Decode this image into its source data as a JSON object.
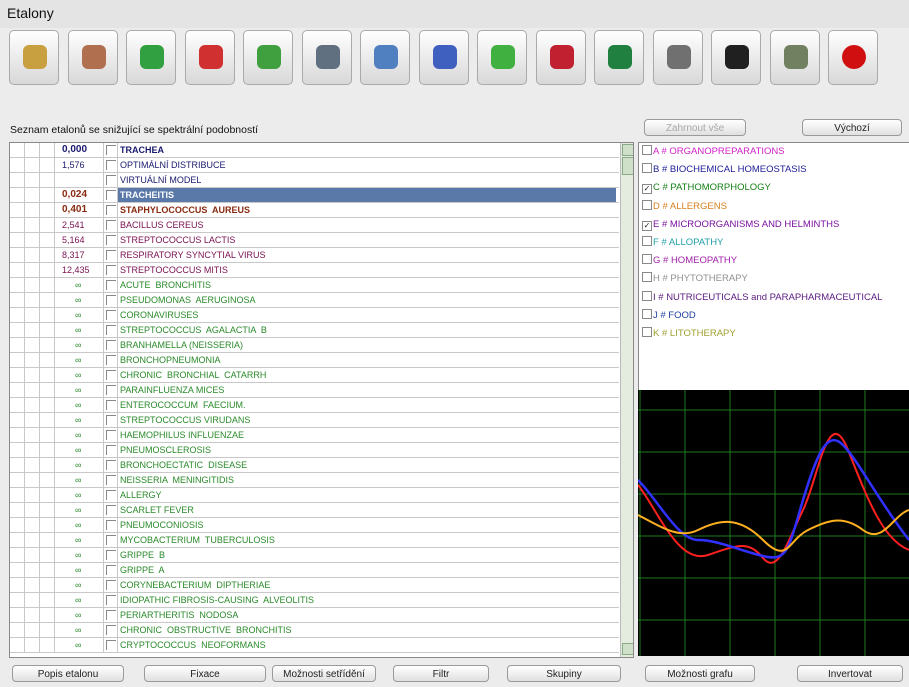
{
  "window": {
    "title": "Etalony"
  },
  "list_caption": "Seznam etalonů se snižující se spektrální podobností",
  "table": {
    "rows": [
      {
        "value": "0,000",
        "name": "TRACHEA",
        "color": "#1a1a6e",
        "bold": true
      },
      {
        "value": "1,576",
        "name": "OPTIMÁLNÍ DISTRIBUCE",
        "color": "#1a1a6e"
      },
      {
        "name": "VIRTUÁLNÍ MODEL",
        "color": "#1a1a6e"
      },
      {
        "value": "0,024",
        "name": "TRACHEITIS",
        "color": "#8a2a10",
        "bold": true,
        "selected": true
      },
      {
        "value": "0,401",
        "name": "STAPHYLOCOCCUS  AUREUS",
        "color": "#8a2a10",
        "bold": true
      },
      {
        "value": "2,541",
        "name": "BACILLUS CEREUS",
        "color": "#7a1050"
      },
      {
        "value": "5,164",
        "name": "STREPTOCOCCUS LACTIS",
        "color": "#7a1050"
      },
      {
        "value": "8,317",
        "name": "RESPIRATORY SYNCYTIAL VIRUS",
        "color": "#7a1050"
      },
      {
        "value": "12,435",
        "name": "STREPTOCOCCUS MITIS",
        "color": "#7a1050"
      },
      {
        "value": "∞",
        "name": "ACUTE  BRONCHITIS",
        "color": "#2a8a2a"
      },
      {
        "value": "∞",
        "name": "PSEUDOMONAS  AERUGINOSA",
        "color": "#2a8a2a"
      },
      {
        "value": "∞",
        "name": "CORONAVIRUSES",
        "color": "#2a8a2a"
      },
      {
        "value": "∞",
        "name": "STREPTOCOCCUS  AGALACTIA  B",
        "color": "#2a8a2a"
      },
      {
        "value": "∞",
        "name": "BRANHAMELLA (NEISSERIA)",
        "color": "#2a8a2a"
      },
      {
        "value": "∞",
        "name": "BRONCHOPNEUMONIA",
        "color": "#2a8a2a"
      },
      {
        "value": "∞",
        "name": "CHRONIC  BRONCHIAL  CATARRH",
        "color": "#2a8a2a"
      },
      {
        "value": "∞",
        "name": "PARAINFLUENZA MICES",
        "color": "#2a8a2a"
      },
      {
        "value": "∞",
        "name": "ENTEROCOCCUM  FAECIUM.",
        "color": "#2a8a2a"
      },
      {
        "value": "∞",
        "name": "STREPTOCOCCUS VIRUDANS",
        "color": "#2a8a2a"
      },
      {
        "value": "∞",
        "name": "HAEMOPHILUS INFLUENZAE",
        "color": "#2a8a2a"
      },
      {
        "value": "∞",
        "name": "PNEUMOSCLEROSIS",
        "color": "#2a8a2a"
      },
      {
        "value": "∞",
        "name": "BRONCHOECTATIC  DISEASE",
        "color": "#2a8a2a"
      },
      {
        "value": "∞",
        "name": "NEISSERIA  MENINGITIDIS",
        "color": "#2a8a2a"
      },
      {
        "value": "∞",
        "name": "ALLERGY",
        "color": "#2a8a2a"
      },
      {
        "value": "∞",
        "name": "SCARLET FEVER",
        "color": "#2a8a2a"
      },
      {
        "value": "∞",
        "name": "PNEUMOCONIOSIS",
        "color": "#2a8a2a"
      },
      {
        "value": "∞",
        "name": "MYCOBACTERIUM  TUBERCULOSIS",
        "color": "#2a8a2a"
      },
      {
        "value": "∞",
        "name": "GRIPPE  B",
        "color": "#2a8a2a"
      },
      {
        "value": "∞",
        "name": "GRIPPE  A",
        "color": "#2a8a2a"
      },
      {
        "value": "∞",
        "name": "CORYNEBACTERIUM  DIPTHERIAE",
        "color": "#2a8a2a"
      },
      {
        "value": "∞",
        "name": "IDIOPATHIC FIBROSIS-CAUSING  ALVEOLITIS",
        "color": "#2a8a2a"
      },
      {
        "value": "∞",
        "name": "PERIARTHERITIS  NODOSA",
        "color": "#2a8a2a"
      },
      {
        "value": "∞",
        "name": "CHRONIC  OBSTRUCTIVE  BRONCHITIS",
        "color": "#2a8a2a"
      },
      {
        "value": "∞",
        "name": "CRYPTOCOCCUS  NEOFORMANS",
        "color": "#2a8a2a"
      }
    ]
  },
  "left_buttons": [
    "Popis etalonu",
    "Fixace",
    "Možnosti setřídění",
    "Filtr",
    "Skupiny"
  ],
  "top_right_buttons": [
    "Zahrnout vše",
    "Výchozí"
  ],
  "categories": [
    {
      "label": "A # ORGANOPREPARATIONS",
      "color": "#d020c8",
      "checked": false
    },
    {
      "label": "B # BIOCHEMICAL HOMEOSTASIS",
      "color": "#20209a",
      "checked": false
    },
    {
      "label": "C # PATHOMORPHOLOGY",
      "color": "#158015",
      "checked": true
    },
    {
      "label": "D # ALLERGENS",
      "color": "#d88020",
      "checked": false
    },
    {
      "label": "E # MICROORGANISMS AND HELMINTHS",
      "color": "#7a10a0",
      "checked": true
    },
    {
      "label": "F # ALLOPATHY",
      "color": "#20a0a8",
      "checked": false
    },
    {
      "label": "G # HOMEOPATHY",
      "color": "#a020a8",
      "checked": false
    },
    {
      "label": "H # PHYTOTHERAPY",
      "color": "#909090",
      "checked": false
    },
    {
      "label": "I # NUTRICEUTICALS and PARAPHARMACEUTICAL",
      "color": "#5a1a80",
      "checked": false
    },
    {
      "label": "J # FOOD",
      "color": "#2040a0",
      "checked": false
    },
    {
      "label": "K # LITOTHERAPY",
      "color": "#a0a030",
      "checked": false
    }
  ],
  "graph_buttons": [
    "Možnosti grafu",
    "Invertovat"
  ]
}
